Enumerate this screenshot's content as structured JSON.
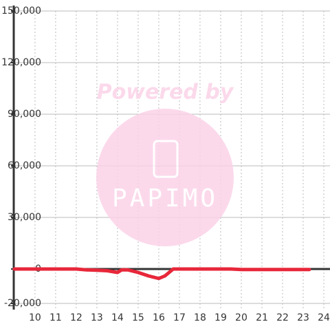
{
  "chart_data": {
    "type": "line",
    "x": [
      9,
      10,
      11,
      12,
      12.5,
      13,
      13.5,
      14,
      14.2,
      14.5,
      15,
      15.5,
      16,
      16.3,
      16.7,
      17,
      18,
      19,
      19.5,
      20,
      21,
      22,
      23,
      23.3
    ],
    "series": [
      {
        "color": "#e8273a",
        "values": [
          0,
          0,
          0,
          0,
          -500,
          -700,
          -1000,
          -2000,
          -500,
          -500,
          -2000,
          -4000,
          -5500,
          -4000,
          0,
          0,
          0,
          0,
          0,
          -300,
          -300,
          -300,
          -300,
          -300
        ]
      }
    ],
    "xlim": [
      8.97,
      24.3
    ],
    "xticks": [
      10,
      11,
      12,
      13,
      14,
      15,
      16,
      17,
      18,
      19,
      20,
      21,
      22,
      23,
      24
    ],
    "ylim": [
      -20000,
      150000
    ],
    "yticks": [
      {
        "value": -20000,
        "label": "-20,000"
      },
      0,
      {
        "value": 30000,
        "label": "30,000"
      },
      {
        "value": 60000,
        "label": "60,000"
      },
      {
        "value": 90000,
        "label": "90,000"
      },
      {
        "value": 120000,
        "label": "120,000"
      },
      {
        "value": 150000,
        "label": "150,000"
      }
    ],
    "grid": true,
    "watermark": {
      "line1": "Powered by",
      "line2": "PAPIMO"
    }
  }
}
